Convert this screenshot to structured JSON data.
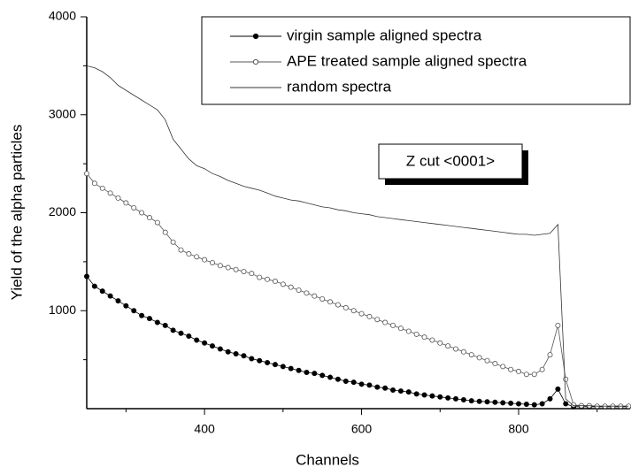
{
  "chart_data": {
    "type": "line",
    "x_label": "Channels",
    "y_label": "Yield of the alpha particles",
    "annotation": "Z cut <0001>",
    "xlim": [
      250,
      942
    ],
    "ylim": [
      0,
      4000
    ],
    "xticks": [
      400,
      600,
      800
    ],
    "yticks": [
      1000,
      2000,
      3000,
      4000
    ],
    "legend": "upper right",
    "x": [
      250,
      260,
      270,
      280,
      290,
      300,
      310,
      320,
      330,
      340,
      350,
      360,
      370,
      380,
      390,
      400,
      410,
      420,
      430,
      440,
      450,
      460,
      470,
      480,
      490,
      500,
      510,
      520,
      530,
      540,
      550,
      560,
      570,
      580,
      590,
      600,
      610,
      620,
      630,
      640,
      650,
      660,
      670,
      680,
      690,
      700,
      710,
      720,
      730,
      740,
      750,
      760,
      770,
      780,
      790,
      800,
      810,
      820,
      830,
      840,
      850,
      860,
      870,
      880,
      890,
      900,
      910,
      920,
      930,
      940
    ],
    "series": [
      {
        "name": "virgin sample aligned spectra",
        "color": "#000000",
        "marker": "filled",
        "values": [
          1350,
          1250,
          1200,
          1150,
          1100,
          1050,
          1000,
          950,
          920,
          880,
          850,
          800,
          770,
          740,
          700,
          670,
          640,
          610,
          580,
          560,
          540,
          510,
          490,
          470,
          450,
          430,
          410,
          390,
          370,
          360,
          340,
          320,
          300,
          280,
          270,
          250,
          240,
          220,
          210,
          190,
          180,
          170,
          150,
          140,
          130,
          120,
          110,
          100,
          90,
          80,
          75,
          70,
          65,
          60,
          55,
          50,
          45,
          40,
          50,
          100,
          200,
          50,
          20,
          20,
          20,
          20,
          20,
          20,
          20,
          20
        ]
      },
      {
        "name": "APE treated sample aligned spectra",
        "color": "#555555",
        "marker": "open",
        "values": [
          2400,
          2300,
          2250,
          2200,
          2150,
          2100,
          2050,
          2000,
          1950,
          1900,
          1800,
          1700,
          1620,
          1580,
          1550,
          1520,
          1490,
          1460,
          1440,
          1420,
          1400,
          1380,
          1340,
          1320,
          1300,
          1270,
          1240,
          1210,
          1180,
          1150,
          1120,
          1090,
          1060,
          1030,
          1000,
          970,
          940,
          910,
          880,
          850,
          820,
          790,
          760,
          730,
          700,
          670,
          640,
          610,
          580,
          550,
          520,
          490,
          460,
          430,
          400,
          380,
          350,
          350,
          400,
          550,
          850,
          300,
          40,
          30,
          30,
          25,
          25,
          25,
          25,
          25
        ]
      },
      {
        "name": "random spectra",
        "color": "#333333",
        "marker": null,
        "values": [
          3500,
          3480,
          3440,
          3380,
          3300,
          3250,
          3200,
          3150,
          3100,
          3050,
          2950,
          2750,
          2650,
          2550,
          2480,
          2450,
          2400,
          2370,
          2330,
          2300,
          2270,
          2250,
          2230,
          2200,
          2170,
          2150,
          2130,
          2120,
          2100,
          2080,
          2060,
          2050,
          2030,
          2020,
          2000,
          1990,
          1980,
          1960,
          1950,
          1940,
          1930,
          1920,
          1910,
          1900,
          1890,
          1880,
          1870,
          1860,
          1850,
          1840,
          1830,
          1820,
          1810,
          1800,
          1790,
          1780,
          1780,
          1770,
          1780,
          1790,
          1880,
          100,
          30,
          30,
          30,
          25,
          25,
          25,
          25,
          25
        ]
      }
    ]
  }
}
